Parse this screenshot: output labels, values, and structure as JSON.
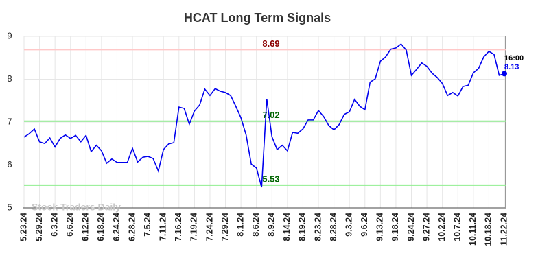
{
  "chart_data": {
    "type": "line",
    "title": "HCAT Long Term Signals",
    "categories": [
      "5.23.24",
      null,
      null,
      "5.29.24",
      null,
      null,
      "6.3.24",
      null,
      null,
      "6.6.24",
      null,
      null,
      "6.12.24",
      null,
      null,
      "6.18.24",
      null,
      null,
      "6.24.24",
      null,
      null,
      "6.28.24",
      null,
      null,
      "7.5.24",
      null,
      null,
      "7.11.24",
      null,
      null,
      "7.16.24",
      null,
      null,
      "7.19.24",
      null,
      null,
      "7.24.24",
      null,
      null,
      "7.29.24",
      null,
      null,
      "8.1.24",
      null,
      null,
      "8.6.24",
      null,
      null,
      "8.9.24",
      null,
      null,
      "8.14.24",
      null,
      null,
      "8.19.24",
      null,
      null,
      "8.23.24",
      null,
      null,
      "8.28.24",
      null,
      null,
      "9.3.24",
      null,
      null,
      "9.6.24",
      null,
      null,
      "9.13.24",
      null,
      null,
      "9.18.24",
      null,
      null,
      "9.24.24",
      null,
      null,
      "9.27.24",
      null,
      null,
      "10.2.24",
      null,
      null,
      "10.7.24",
      null,
      null,
      "10.11.24",
      null,
      null,
      "10.18.24",
      null,
      null,
      "11.22.24"
    ],
    "values": [
      6.65,
      6.73,
      6.84,
      6.54,
      6.5,
      6.63,
      6.42,
      6.62,
      6.7,
      6.62,
      6.69,
      6.54,
      6.69,
      6.31,
      6.46,
      6.33,
      6.04,
      6.14,
      6.06,
      6.06,
      6.06,
      6.39,
      6.07,
      6.18,
      6.2,
      6.15,
      5.86,
      6.36,
      6.49,
      6.52,
      7.35,
      7.32,
      6.95,
      7.26,
      7.4,
      7.77,
      7.62,
      7.78,
      7.72,
      7.69,
      7.62,
      7.37,
      7.1,
      6.7,
      6.02,
      5.93,
      5.48,
      7.54,
      6.66,
      6.36,
      6.46,
      6.33,
      6.76,
      6.74,
      6.84,
      7.05,
      7.05,
      7.27,
      7.13,
      6.92,
      6.82,
      6.94,
      7.18,
      7.24,
      7.53,
      7.37,
      7.29,
      7.93,
      8.01,
      8.42,
      8.52,
      8.7,
      8.73,
      8.82,
      8.68,
      8.09,
      8.23,
      8.38,
      8.3,
      8.14,
      8.04,
      7.9,
      7.62,
      7.69,
      7.61,
      7.83,
      7.86,
      8.15,
      8.25,
      8.52,
      8.65,
      8.58,
      8.09,
      8.13
    ],
    "color": "#0000ee",
    "last_time": "16:00",
    "hlines": [
      {
        "value": 8.69,
        "color": "#ffc8c8",
        "label_color": "#8b0000"
      },
      {
        "value": 7.02,
        "color": "#90ee90",
        "label_color": "#006400"
      },
      {
        "value": 5.53,
        "color": "#90ee90",
        "label_color": "#006400"
      }
    ],
    "watermark": "Stock Traders Daily",
    "ylim": [
      5,
      9
    ],
    "yticks": [
      5,
      6,
      7,
      8,
      9
    ],
    "grid": true
  }
}
